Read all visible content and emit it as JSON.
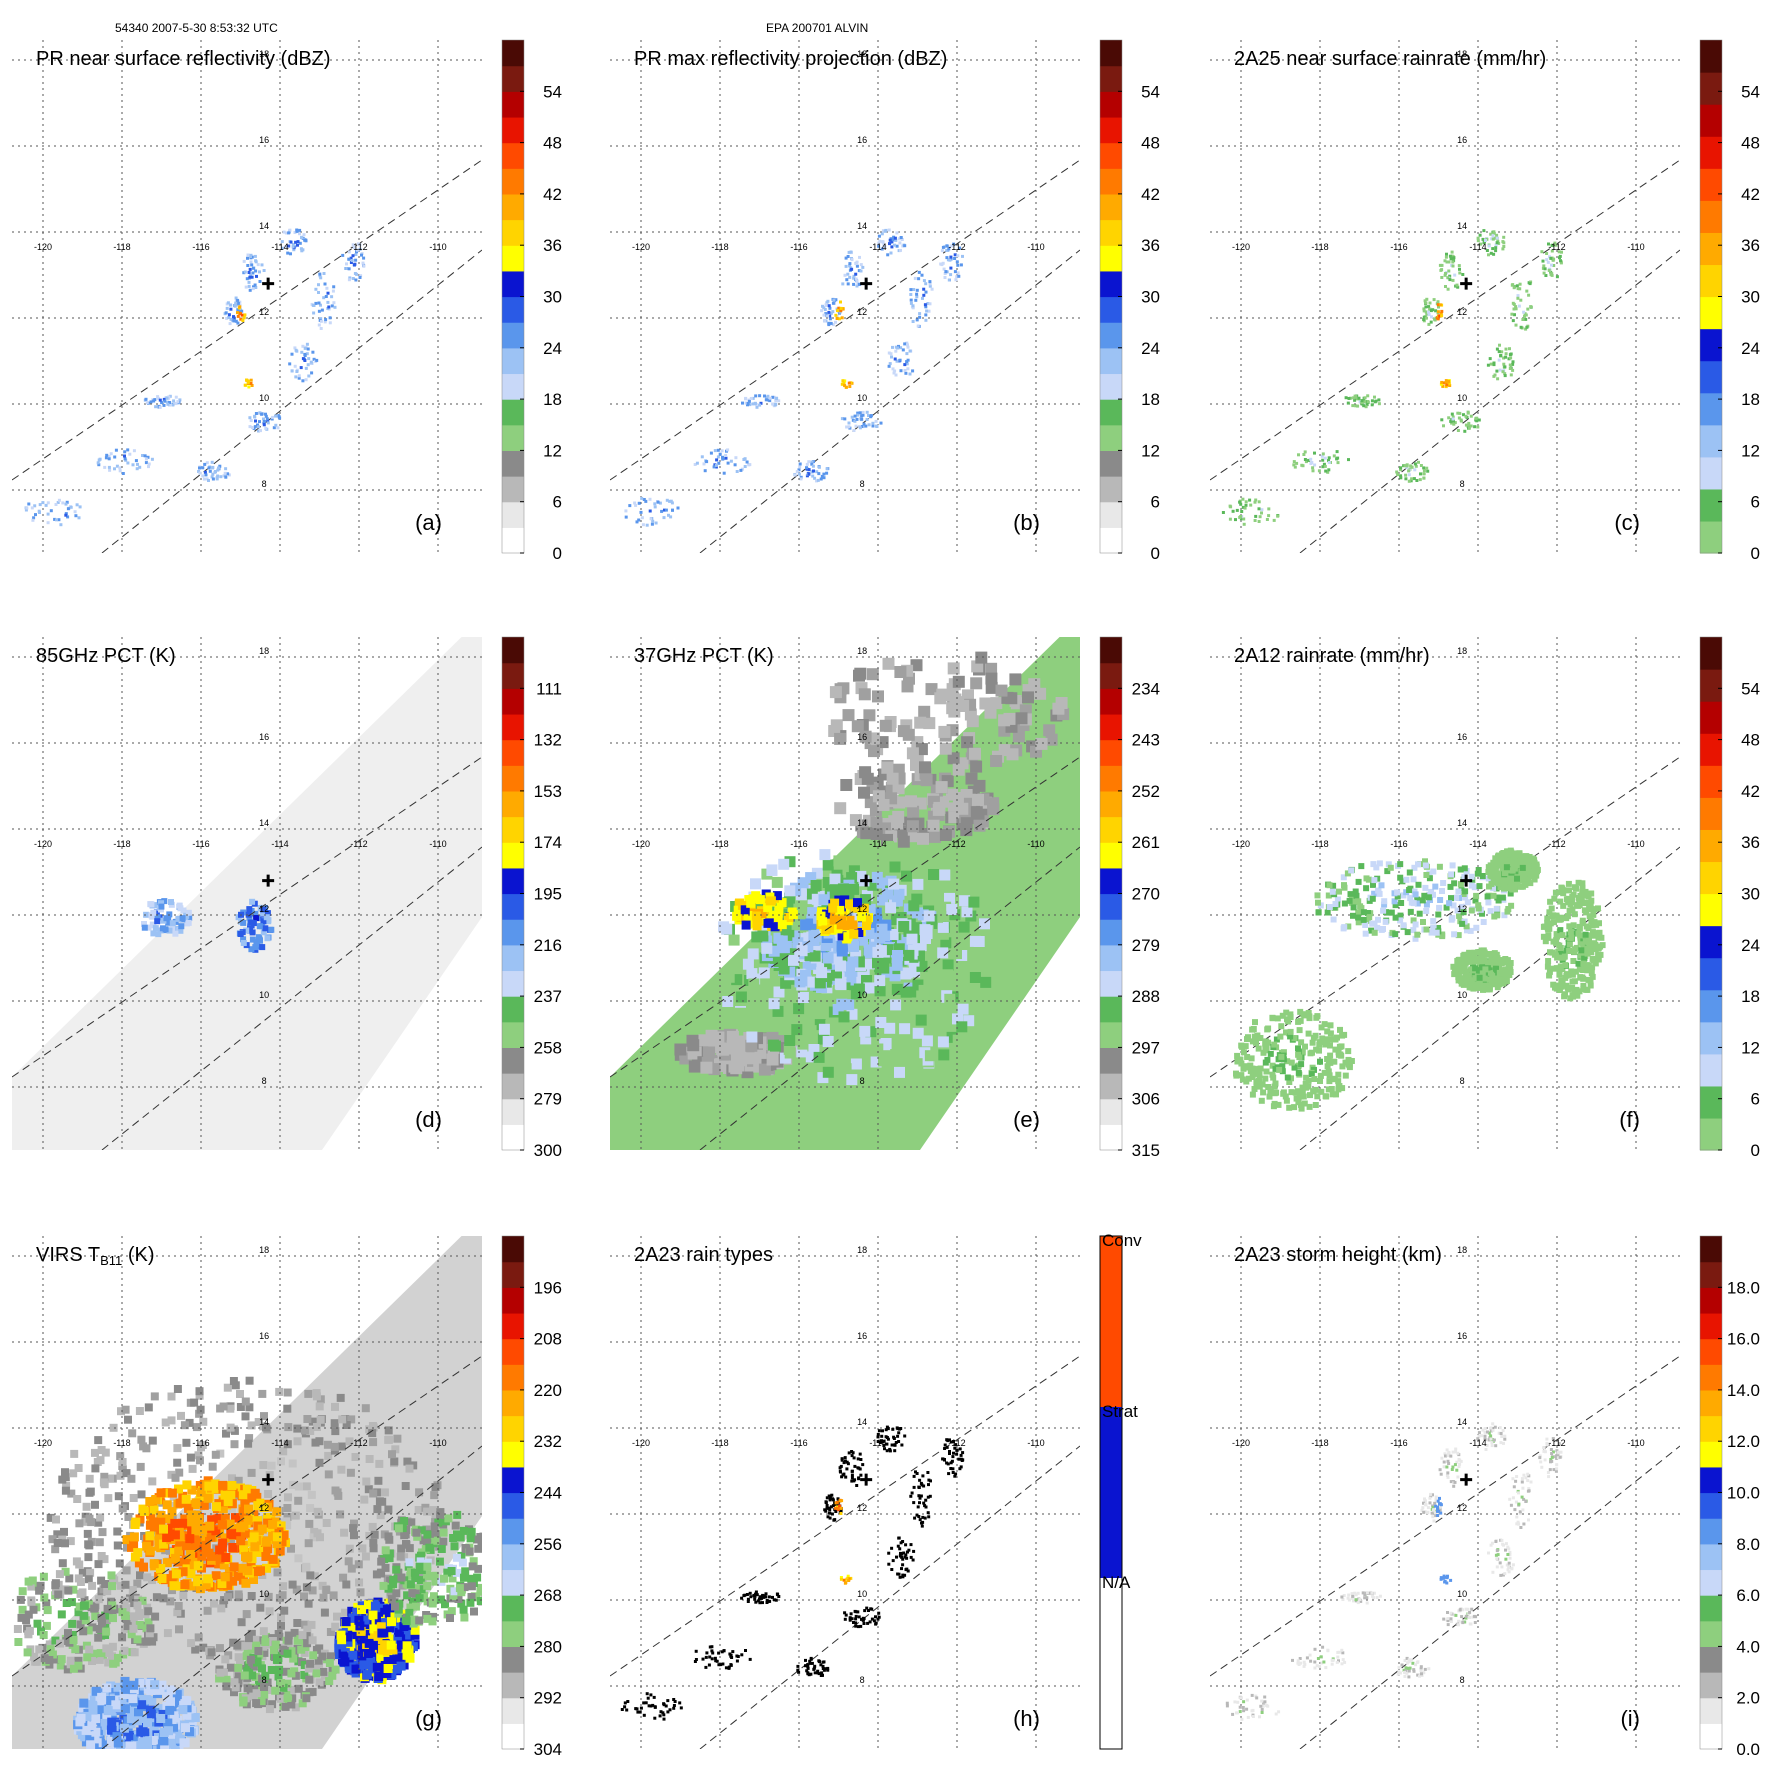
{
  "header": {
    "orbit_time": "54340 2007-5-30 8:53:32 UTC",
    "storm_id": "EPA 200701 ALVIN"
  },
  "lon_ticks": [
    "-120",
    "-118",
    "-116",
    "-114",
    "-112",
    "-110"
  ],
  "lat_ticks": [
    "18",
    "16",
    "14",
    "12",
    "10",
    "8"
  ],
  "panels": [
    {
      "label": "(a)",
      "title": "PR near surface reflectivity (dBZ)",
      "kind": "pr_refl",
      "cbar": [
        "0",
        "6",
        "12",
        "18",
        "24",
        "30",
        "36",
        "42",
        "48",
        "54"
      ],
      "cbar_colors": "ref"
    },
    {
      "label": "(b)",
      "title": "PR max reflectivity projection (dBZ)",
      "kind": "pr_max",
      "cbar": [
        "0",
        "6",
        "12",
        "18",
        "24",
        "30",
        "36",
        "42",
        "48",
        "54"
      ],
      "cbar_colors": "ref"
    },
    {
      "label": "(c)",
      "title": "2A25 near surface rainrate (mm/hr)",
      "kind": "pr_rain",
      "cbar": [
        "0",
        "6",
        "12",
        "18",
        "24",
        "30",
        "36",
        "42",
        "48",
        "54"
      ],
      "cbar_colors": "rain"
    },
    {
      "label": "(d)",
      "title": "85GHz PCT (K)",
      "kind": "pct85",
      "cbar": [
        "300",
        "279",
        "258",
        "237",
        "216",
        "195",
        "174",
        "153",
        "132",
        "111"
      ],
      "cbar_colors": "ref"
    },
    {
      "label": "(e)",
      "title": "37GHz PCT (K)",
      "kind": "pct37",
      "cbar": [
        "315",
        "306",
        "297",
        "288",
        "279",
        "270",
        "261",
        "252",
        "243",
        "234"
      ],
      "cbar_colors": "ref"
    },
    {
      "label": "(f)",
      "title": "2A12 rainrate (mm/hr)",
      "kind": "tmi_rain",
      "cbar": [
        "0",
        "6",
        "12",
        "18",
        "24",
        "30",
        "36",
        "42",
        "48",
        "54"
      ],
      "cbar_colors": "rain"
    },
    {
      "label": "(g)",
      "title": "VIRS T",
      "title_sub": "B11",
      "title_tail": " (K)",
      "kind": "virs",
      "cbar": [
        "304",
        "292",
        "280",
        "268",
        "256",
        "244",
        "232",
        "220",
        "208",
        "196"
      ],
      "cbar_colors": "ref"
    },
    {
      "label": "(h)",
      "title": "2A23 rain types",
      "kind": "raintype",
      "cbar": [
        "N/A",
        "Strat",
        "Conv"
      ],
      "cbar_colors": "type"
    },
    {
      "label": "(i)",
      "title": "2A23 storm height (km)",
      "kind": "height",
      "cbar": [
        "0.0",
        "2.0",
        "4.0",
        "6.0",
        "8.0",
        "10.0",
        "12.0",
        "14.0",
        "16.0",
        "18.0"
      ],
      "cbar_colors": "ref"
    }
  ],
  "colors": {
    "ref": [
      "#ffffff",
      "#e8e8e8",
      "#b8b8b8",
      "#8a8a8a",
      "#8ecf7e",
      "#5ab85a",
      "#c8d8f8",
      "#9cc2f4",
      "#5a96ec",
      "#2a5ae6",
      "#0a14d0",
      "#ffff00",
      "#ffd400",
      "#ffaa00",
      "#ff7a00",
      "#ff4a00",
      "#e81400",
      "#b40000",
      "#7a1a10",
      "#4a0a05"
    ],
    "rain": [
      "#8ecf7e",
      "#5ab85a",
      "#c8d8f8",
      "#9cc2f4",
      "#5a96ec",
      "#2a5ae6",
      "#0a14d0",
      "#ffff00",
      "#ffd400",
      "#ffaa00",
      "#ff7a00",
      "#ff4a00",
      "#e81400",
      "#b40000",
      "#7a1a10",
      "#4a0a05"
    ],
    "type_conv": "#ff4a00",
    "type_strat": "#0a14d0"
  }
}
